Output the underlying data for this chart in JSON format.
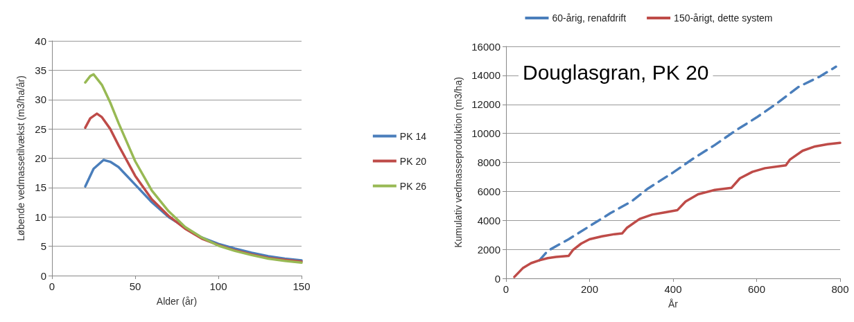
{
  "chart_data": [
    {
      "type": "line",
      "xlabel": "Alder (år)",
      "ylabel": "Løbende vedmassetilvækst (m3/ha/år)",
      "xlim": [
        0,
        150
      ],
      "xticks": [
        0,
        50,
        100,
        150
      ],
      "ylim": [
        0,
        40
      ],
      "yticks": [
        0,
        5,
        10,
        15,
        20,
        25,
        30,
        35,
        40
      ],
      "grid": "y",
      "legend": "right",
      "marker": "none",
      "line_style": "solid",
      "series": [
        {
          "name": "PK 14",
          "color": "#4a7ebb",
          "x": [
            20,
            25,
            31,
            35,
            40,
            50,
            60,
            70,
            80,
            90,
            100,
            110,
            120,
            130,
            140,
            150
          ],
          "values": [
            15.2,
            18.2,
            19.7,
            19.4,
            18.5,
            15.5,
            12.5,
            10,
            8.2,
            6.5,
            5.4,
            4.6,
            3.9,
            3.3,
            2.9,
            2.6
          ]
        },
        {
          "name": "PK 20",
          "color": "#be4b48",
          "x": [
            20,
            23,
            27,
            30,
            35,
            40,
            50,
            60,
            70,
            80,
            90,
            100,
            110,
            120,
            130,
            140,
            150
          ],
          "values": [
            25.2,
            26.8,
            27.6,
            27,
            25,
            22.2,
            17,
            13,
            10.2,
            8,
            6.3,
            5.2,
            4.3,
            3.6,
            3,
            2.7,
            2.4
          ]
        },
        {
          "name": "PK 26",
          "color": "#98b954",
          "x": [
            20,
            23,
            25,
            30,
            35,
            40,
            50,
            60,
            70,
            80,
            90,
            100,
            110,
            120,
            130,
            140,
            150
          ],
          "values": [
            32.9,
            34,
            34.3,
            32.5,
            29.5,
            26,
            19.5,
            14.5,
            11,
            8.3,
            6.5,
            5.1,
            4.2,
            3.5,
            2.9,
            2.5,
            2.2
          ]
        }
      ]
    },
    {
      "type": "line",
      "annotations": [
        "Douglasgran, PK 20"
      ],
      "xlabel": "År",
      "ylabel": "Kumulativ vedmasseproduktion (m3/ha)",
      "xlim": [
        0,
        800
      ],
      "xticks": [
        0,
        200,
        400,
        600,
        800
      ],
      "ylim": [
        0,
        16000
      ],
      "yticks": [
        0,
        2000,
        4000,
        6000,
        8000,
        10000,
        12000,
        14000,
        16000
      ],
      "grid": "y",
      "legend": "top",
      "marker": "none",
      "series": [
        {
          "name": "60-årig, renafdrift",
          "color": "#4a7ebb",
          "line_style": "dashed",
          "x": [
            80,
            100,
            150,
            200,
            250,
            300,
            340,
            400,
            450,
            500,
            550,
            600,
            650,
            700,
            750,
            790
          ],
          "values": [
            1250,
            1900,
            2700,
            3600,
            4500,
            5300,
            6200,
            7300,
            8300,
            9200,
            10200,
            11100,
            12100,
            13200,
            13900,
            14600
          ]
        },
        {
          "name": "150-årigt, dette system",
          "color": "#be4b48",
          "line_style": "solid",
          "x": [
            20,
            40,
            60,
            80,
            100,
            120,
            150,
            160,
            180,
            200,
            230,
            260,
            278,
            290,
            320,
            350,
            380,
            410,
            430,
            460,
            500,
            540,
            560,
            590,
            620,
            670,
            680,
            710,
            740,
            770,
            800
          ],
          "values": [
            100,
            700,
            1050,
            1250,
            1400,
            1480,
            1550,
            1950,
            2400,
            2700,
            2900,
            3050,
            3100,
            3500,
            4100,
            4400,
            4550,
            4700,
            5300,
            5800,
            6100,
            6250,
            6900,
            7350,
            7600,
            7800,
            8200,
            8800,
            9100,
            9250,
            9350
          ]
        }
      ]
    }
  ]
}
